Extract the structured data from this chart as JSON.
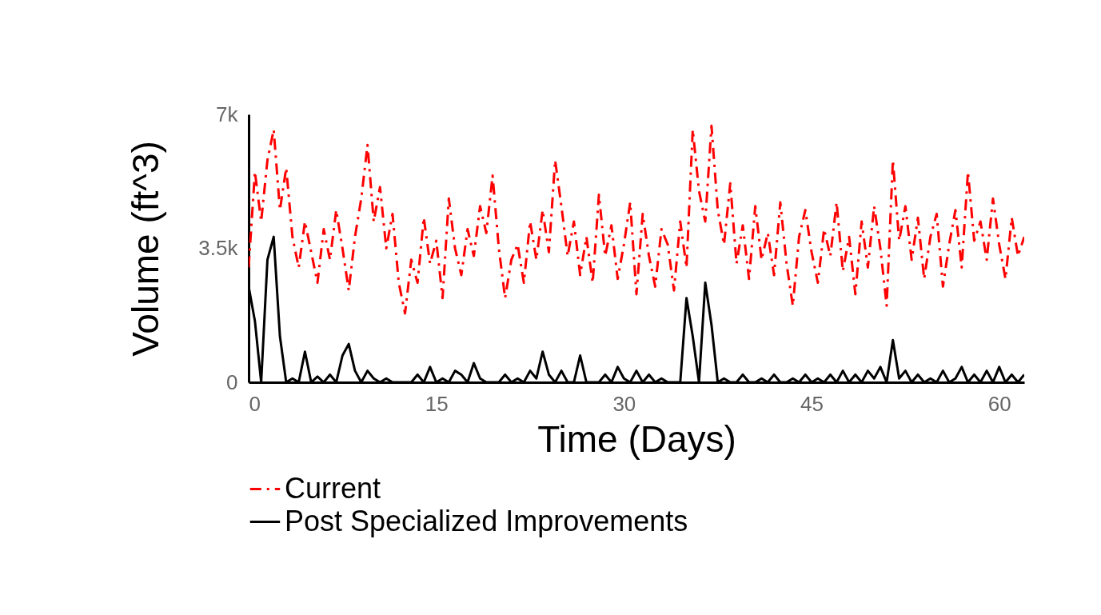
{
  "chart_data": {
    "type": "line",
    "xlabel": "Time (Days)",
    "ylabel": "Volume (ft^3)",
    "x": [
      0,
      0.5,
      1,
      1.5,
      2,
      2.5,
      3,
      3.5,
      4,
      4.5,
      5,
      5.5,
      6,
      6.5,
      7,
      7.5,
      8,
      8.5,
      9,
      9.5,
      10,
      10.5,
      11,
      11.5,
      12,
      12.5,
      13,
      13.5,
      14,
      14.5,
      15,
      15.5,
      16,
      16.5,
      17,
      17.5,
      18,
      18.5,
      19,
      19.5,
      20,
      20.5,
      21,
      21.5,
      22,
      22.5,
      23,
      23.5,
      24,
      24.5,
      25,
      25.5,
      26,
      26.5,
      27,
      27.5,
      28,
      28.5,
      29,
      29.5,
      30,
      30.5,
      31,
      31.5,
      32,
      32.5,
      33,
      33.5,
      34,
      34.5,
      35,
      35.5,
      36,
      36.5,
      37,
      37.5,
      38,
      38.5,
      39,
      39.5,
      40,
      40.5,
      41,
      41.5,
      42,
      42.5,
      43,
      43.5,
      44,
      44.5,
      45,
      45.5,
      46,
      46.5,
      47,
      47.5,
      48,
      48.5,
      49,
      49.5,
      50,
      50.5,
      51,
      51.5,
      52,
      52.5,
      53,
      53.5,
      54,
      54.5,
      55,
      55.5,
      56,
      56.5,
      57,
      57.5,
      58,
      58.5,
      59,
      59.5,
      60,
      60.5,
      61,
      61.5,
      62
    ],
    "series": [
      {
        "name": "Current",
        "color": "#ff0000",
        "line_style": "dashed",
        "values": [
          3000,
          5500,
          4200,
          5800,
          6600,
          4500,
          5600,
          3800,
          3000,
          4200,
          3400,
          2600,
          4000,
          3200,
          4500,
          3500,
          2400,
          3800,
          4800,
          6200,
          4200,
          5100,
          3500,
          4400,
          2600,
          1800,
          3200,
          2600,
          4300,
          3100,
          3700,
          2200,
          4800,
          3500,
          2800,
          4000,
          3300,
          4600,
          3900,
          5400,
          3500,
          2200,
          3200,
          3600,
          2600,
          4200,
          3200,
          4500,
          3400,
          5800,
          4600,
          3300,
          4200,
          2800,
          3800,
          2600,
          4900,
          3300,
          4100,
          2700,
          3600,
          4700,
          2300,
          4400,
          3300,
          2500,
          4000,
          3600,
          2400,
          4200,
          3000,
          6600,
          5000,
          4200,
          6700,
          4500,
          3600,
          5200,
          3100,
          4100,
          2700,
          4600,
          3200,
          3900,
          2800,
          4700,
          3100,
          2000,
          3800,
          4500,
          3400,
          2600,
          4000,
          3300,
          4700,
          2900,
          3800,
          2300,
          4200,
          3000,
          4600,
          3500,
          2000,
          5800,
          3700,
          4600,
          3200,
          4300,
          2700,
          3800,
          4400,
          2500,
          3600,
          4500,
          3000,
          5500,
          3700,
          4200,
          3200,
          4800,
          3600,
          2700,
          4300,
          3300,
          3800
        ]
      },
      {
        "name": "Post Specialized Improvements",
        "color": "#000000",
        "line_style": "solid",
        "values": [
          2500,
          1600,
          0,
          3200,
          3800,
          1200,
          0,
          100,
          0,
          800,
          0,
          150,
          0,
          200,
          0,
          700,
          1000,
          300,
          0,
          300,
          100,
          0,
          100,
          0,
          0,
          0,
          0,
          200,
          0,
          400,
          0,
          100,
          0,
          300,
          200,
          0,
          500,
          100,
          0,
          0,
          0,
          200,
          0,
          100,
          0,
          300,
          100,
          800,
          200,
          0,
          300,
          0,
          0,
          700,
          0,
          0,
          0,
          200,
          0,
          400,
          100,
          0,
          300,
          0,
          200,
          0,
          100,
          0,
          0,
          0,
          2200,
          1200,
          0,
          2600,
          1500,
          0,
          100,
          0,
          0,
          200,
          0,
          0,
          100,
          0,
          200,
          0,
          0,
          100,
          0,
          200,
          0,
          100,
          0,
          200,
          0,
          300,
          0,
          200,
          0,
          300,
          100,
          400,
          0,
          1100,
          100,
          300,
          0,
          200,
          0,
          100,
          0,
          300,
          0,
          100,
          400,
          0,
          200,
          0,
          300,
          0,
          400,
          0,
          200,
          0,
          200
        ]
      }
    ],
    "xlim": [
      0,
      62
    ],
    "xticks": [
      0,
      15,
      30,
      45,
      60
    ],
    "ylim": [
      0,
      7000
    ],
    "yticks": [
      0,
      {
        "value": 3500,
        "label": "3.5k"
      },
      {
        "value": 7000,
        "label": "7k"
      }
    ],
    "grid": false,
    "legend": "bottom"
  }
}
